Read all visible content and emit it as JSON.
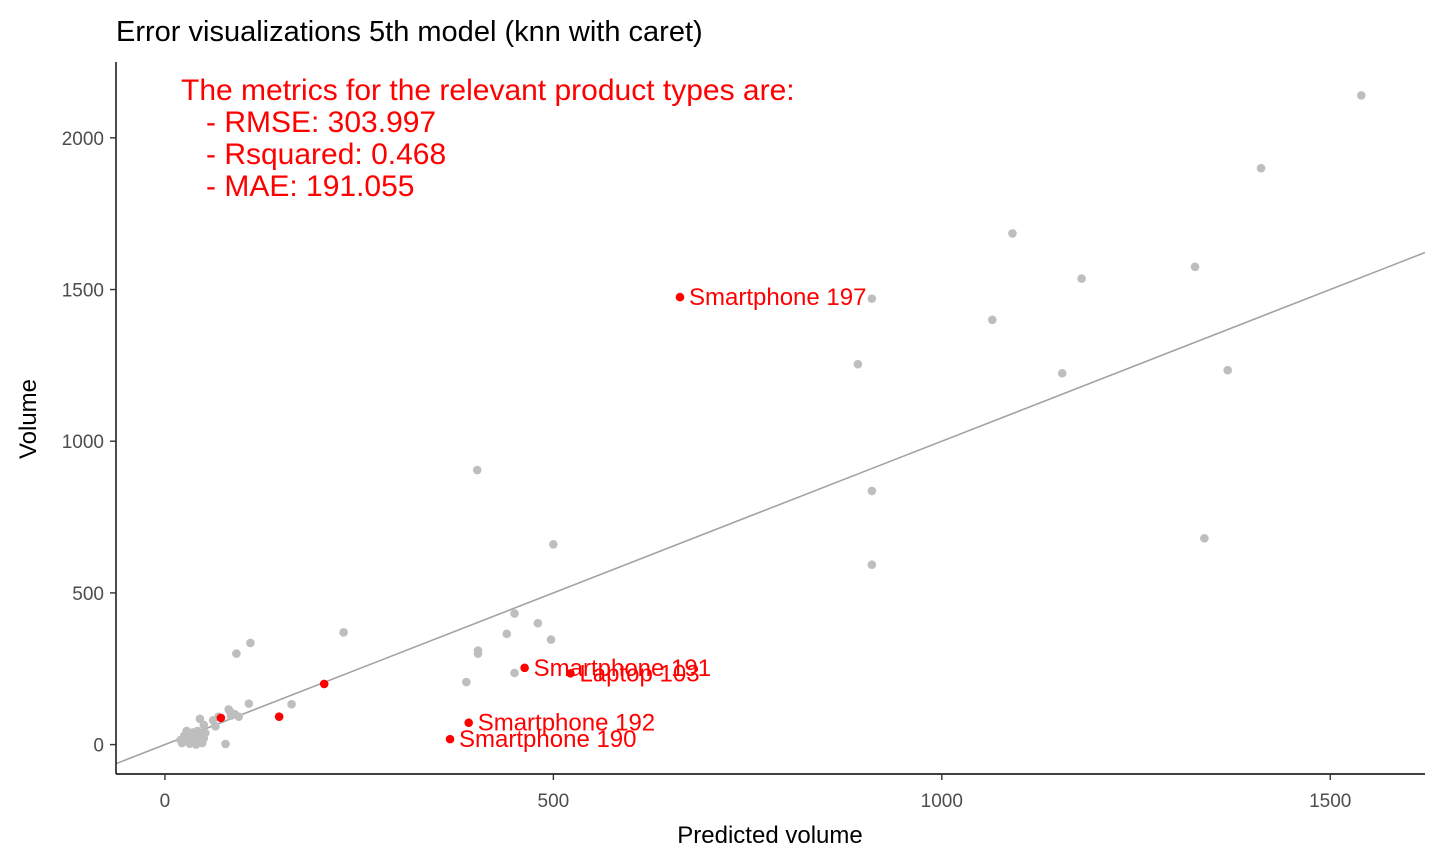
{
  "chart_data": {
    "type": "scatter",
    "title": "Error visualizations 5th model (knn with caret)",
    "xlabel": "Predicted volume",
    "ylabel": "Volume",
    "xlim": [
      -63,
      1622
    ],
    "ylim": [
      -97,
      2250
    ],
    "x_ticks": [
      0,
      500,
      1000,
      1500
    ],
    "y_ticks": [
      0,
      500,
      1000,
      1500,
      2000
    ],
    "grid": false,
    "colors": {
      "other": "#bebebe",
      "highlight": "#ff0000",
      "line": "#a3a3a3",
      "annotation": "#ff0000"
    },
    "reference_line": {
      "slope": 1,
      "intercept": 0
    },
    "annotation": [
      "The metrics for the relevant product types are:",
      "   - RMSE: 303.997",
      "   - Rsquared: 0.468",
      "   - MAE: 191.055"
    ],
    "series": [
      {
        "points": [
          [
            1540,
            2140
          ],
          [
            1411,
            1900
          ],
          [
            1091,
            1685
          ],
          [
            1180,
            1536
          ],
          [
            1326,
            1575
          ],
          [
            910,
            1470
          ],
          [
            1065,
            1400
          ],
          [
            892,
            1254
          ],
          [
            1155,
            1224
          ],
          [
            1368,
            1234
          ],
          [
            402,
            905
          ],
          [
            910,
            836
          ],
          [
            500,
            660
          ],
          [
            1338,
            680
          ],
          [
            910,
            593
          ],
          [
            450,
            432
          ],
          [
            480,
            400
          ],
          [
            440,
            365
          ],
          [
            230,
            370
          ],
          [
            403,
            310
          ],
          [
            403,
            300
          ],
          [
            497,
            346
          ],
          [
            388,
            206
          ],
          [
            450,
            236
          ],
          [
            110,
            335
          ],
          [
            92,
            300
          ],
          [
            108,
            135
          ],
          [
            163,
            133
          ],
          [
            95,
            92
          ],
          [
            82,
            116
          ],
          [
            90,
            100
          ],
          [
            85,
            95
          ],
          [
            62,
            80
          ],
          [
            45,
            85
          ],
          [
            50,
            65
          ],
          [
            65,
            60
          ],
          [
            20,
            15
          ],
          [
            22,
            5
          ],
          [
            25,
            30
          ],
          [
            28,
            45
          ],
          [
            30,
            10
          ],
          [
            32,
            3
          ],
          [
            34,
            25
          ],
          [
            36,
            40
          ],
          [
            38,
            20
          ],
          [
            40,
            0
          ],
          [
            42,
            45
          ],
          [
            44,
            12
          ],
          [
            46,
            30
          ],
          [
            48,
            5
          ],
          [
            50,
            20
          ],
          [
            52,
            38
          ],
          [
            26,
            18
          ],
          [
            33,
            33
          ],
          [
            41,
            8
          ],
          [
            78,
            2
          ],
          [
            84,
            108
          ],
          [
            69,
            92
          ]
        ]
      },
      {
        "points": [
          {
            "x": 663,
            "y": 1475,
            "label": "Smartphone 197"
          },
          {
            "x": 463,
            "y": 253,
            "label": "Smartphone 191"
          },
          {
            "x": 522,
            "y": 235,
            "label": "Laptop 103"
          },
          {
            "x": 391,
            "y": 72,
            "label": "Smartphone 192"
          },
          {
            "x": 367,
            "y": 18,
            "label": "Smartphone 190"
          },
          {
            "x": 205,
            "y": 200
          },
          {
            "x": 147,
            "y": 92
          },
          {
            "x": 72,
            "y": 88
          }
        ]
      }
    ]
  }
}
